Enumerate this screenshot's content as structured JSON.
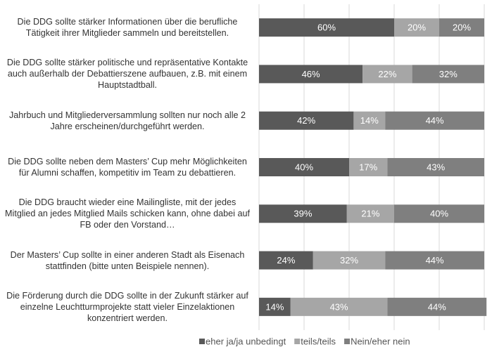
{
  "chart_data": {
    "type": "stacked_bar_horizontal",
    "categories": [
      "Die DDG sollte stärker Informationen über die berufliche Tätigkeit ihrer Mitglieder sammeln und bereitstellen.",
      "Die DDG sollte stärker politische und repräsentative Kontakte auch außerhalb der Debattierszene aufbauen, z.B. mit einem Hauptstadtball.",
      "Jahrbuch und Mitgliederversammlung sollten nur noch alle 2 Jahre erscheinen/durchgeführt werden.",
      "Die DDG sollte neben dem Masters’ Cup mehr Möglichkeiten für Alumni schaffen, kompetitiv im Team zu debattieren.",
      "Die DDG braucht wieder eine Mailingliste, mit der jedes Mitglied an jedes Mitglied Mails schicken kann, ohne dabei auf FB oder den Vorstand…",
      "Der Masters’ Cup sollte in einer anderen Stadt als Eisenach stattfinden (bitte unten Beispiele nennen).",
      "Die Förderung durch die DDG sollte in der Zukunft stärker auf einzelne Leuchtturmprojekte statt vieler Einzelaktionen konzentriert werden."
    ],
    "series": [
      {
        "name": "eher ja/ja unbedingt",
        "color": "#595959",
        "values": [
          60,
          46,
          42,
          40,
          39,
          24,
          14
        ],
        "value_labels": [
          "60%",
          "46%",
          "42%",
          "40%",
          "39%",
          "24%",
          "14%"
        ]
      },
      {
        "name": "teils/teils",
        "color": "#a6a6a6",
        "values": [
          20,
          22,
          14,
          17,
          21,
          32,
          43
        ],
        "value_labels": [
          "20%",
          "22%",
          "14%",
          "17%",
          "21%",
          "32%",
          "43%"
        ]
      },
      {
        "name": "Nein/eher nein",
        "color": "#7f7f7f",
        "values": [
          20,
          32,
          44,
          43,
          40,
          44,
          44
        ],
        "value_labels": [
          "20%",
          "32%",
          "44%",
          "43%",
          "40%",
          "44%",
          "44%"
        ]
      }
    ],
    "xlim": [
      0,
      100
    ],
    "xticks": [
      0,
      20,
      40,
      60,
      80,
      100
    ],
    "grid": true,
    "legend": "bottom"
  }
}
